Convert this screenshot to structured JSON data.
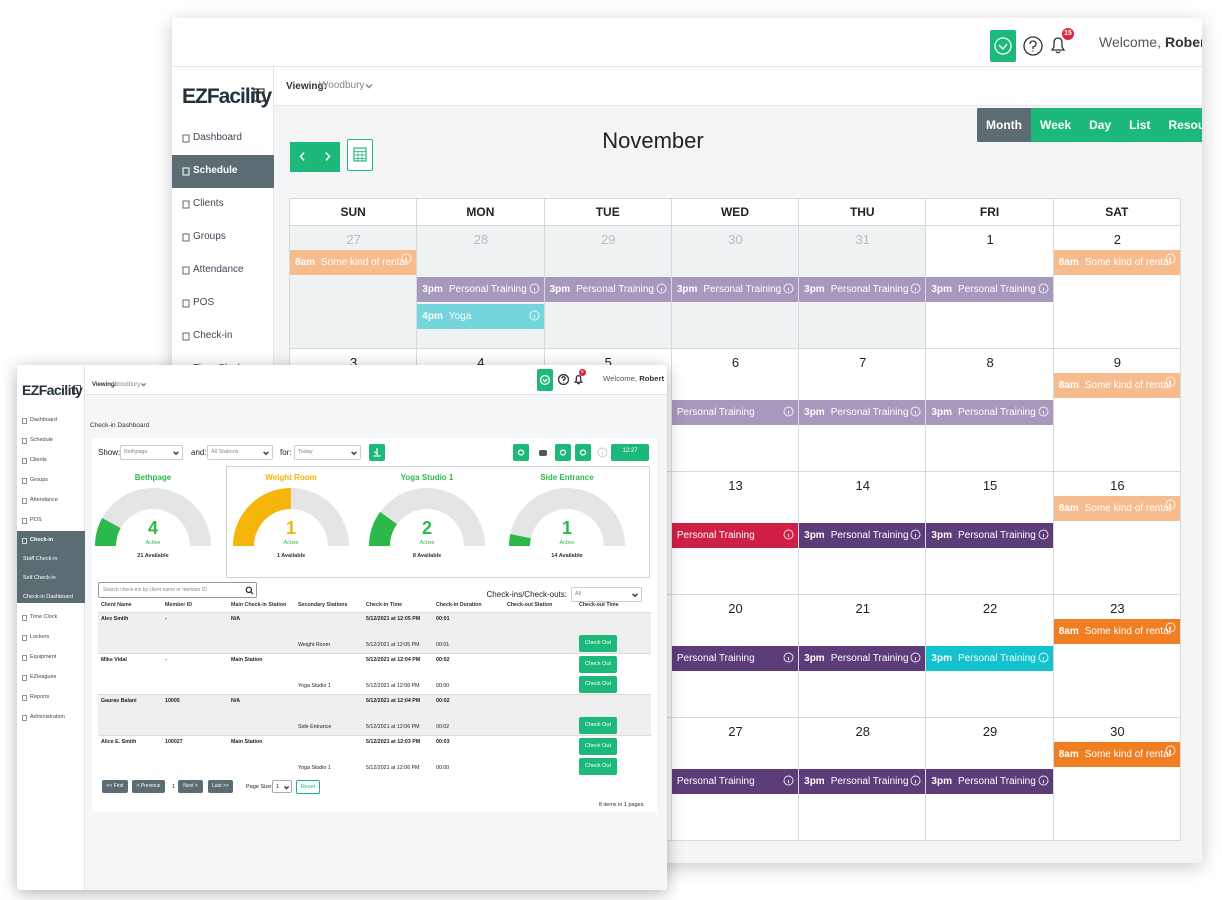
{
  "back": {
    "logo": "EZFacility",
    "viewing_label": "Viewing:",
    "viewing": "Woodbury",
    "welcome": "Welcome,",
    "user": "Robert",
    "notifications": "15",
    "nav": [
      {
        "label": "Dashboard"
      },
      {
        "label": "Schedule",
        "active": true
      },
      {
        "label": "Clients"
      },
      {
        "label": "Groups"
      },
      {
        "label": "Attendance"
      },
      {
        "label": "POS"
      },
      {
        "label": "Check-in"
      },
      {
        "label": "Time Clock"
      }
    ],
    "calendar": {
      "month": "November",
      "views": [
        {
          "label": "Month",
          "active": true
        },
        {
          "label": "Week"
        },
        {
          "label": "Day"
        },
        {
          "label": "List"
        },
        {
          "label": "Resources"
        }
      ],
      "weekdays": [
        "SUN",
        "MON",
        "TUE",
        "WED",
        "THU",
        "FRI",
        "SAT"
      ],
      "weeks": [
        [
          {
            "date": 27,
            "other_month": true,
            "events": [
              {
                "time": "8am",
                "label": "Some kind of rental",
                "color": "#f7bc8d"
              }
            ]
          },
          {
            "date": 28,
            "other_month": true,
            "events": [
              {
                "time": "3pm",
                "label": "Personal Training",
                "color": "#a898bd"
              },
              {
                "time": "4pm",
                "label": "Yoga",
                "color": "#74d6dc"
              }
            ]
          },
          {
            "date": 29,
            "other_month": true,
            "events": [
              {
                "time": "3pm",
                "label": "Personal Training",
                "color": "#a898bd"
              }
            ]
          },
          {
            "date": 30,
            "other_month": true,
            "events": [
              {
                "time": "3pm",
                "label": "Personal Training",
                "color": "#a898bd"
              }
            ]
          },
          {
            "date": 31,
            "other_month": true,
            "events": [
              {
                "time": "3pm",
                "label": "Personal Training",
                "color": "#a898bd"
              }
            ]
          },
          {
            "date": 1,
            "events": [
              {
                "time": "3pm",
                "label": "Personal Training",
                "color": "#a898bd"
              }
            ]
          },
          {
            "date": 2,
            "events": [
              {
                "time": "8am",
                "label": "Some kind of rental",
                "color": "#f7bc8d"
              }
            ]
          }
        ],
        [
          {
            "date": 3
          },
          {
            "date": 4
          },
          {
            "date": 5
          },
          {
            "date": 6,
            "events": [
              {
                "label": "Personal Training",
                "color": "#a898bd"
              }
            ]
          },
          {
            "date": 7,
            "events": [
              {
                "time": "3pm",
                "label": "Personal Training",
                "color": "#a898bd"
              }
            ]
          },
          {
            "date": 8,
            "events": [
              {
                "time": "3pm",
                "label": "Personal Training",
                "color": "#a898bd"
              }
            ]
          },
          {
            "date": 9,
            "events": [
              {
                "time": "8am",
                "label": "Some kind of rental",
                "color": "#f7bc8d"
              }
            ]
          }
        ],
        [
          null,
          null,
          null,
          {
            "date": 13,
            "events": [
              {
                "label": "Personal Training",
                "color": "#cf1f45"
              }
            ]
          },
          {
            "date": 14,
            "events": [
              {
                "time": "3pm",
                "label": "Personal Training",
                "color": "#5d3c7a"
              }
            ]
          },
          {
            "date": 15,
            "events": [
              {
                "time": "3pm",
                "label": "Personal Training",
                "color": "#5d3c7a"
              }
            ]
          },
          {
            "date": 16,
            "events": [
              {
                "time": "8am",
                "label": "Some kind of rental",
                "color": "#f7bc8d"
              }
            ]
          }
        ],
        [
          null,
          null,
          null,
          {
            "date": 20,
            "events": [
              {
                "label": "Personal Training",
                "color": "#5d3c7a"
              }
            ]
          },
          {
            "date": 21,
            "events": [
              {
                "time": "3pm",
                "label": "Personal Training",
                "color": "#5d3c7a"
              }
            ]
          },
          {
            "date": 22,
            "events": [
              {
                "time": "3pm",
                "label": "Personal Training",
                "color": "#12c2ce"
              }
            ]
          },
          {
            "date": 23,
            "events": [
              {
                "time": "8am",
                "label": "Some kind of rental",
                "color": "#f07e22"
              }
            ]
          }
        ],
        [
          null,
          null,
          null,
          {
            "date": 27,
            "events": [
              {
                "label": "Personal Training",
                "color": "#5d3c7a"
              }
            ]
          },
          {
            "date": 28,
            "events": [
              {
                "time": "3pm",
                "label": "Personal Training",
                "color": "#5d3c7a"
              }
            ]
          },
          {
            "date": 29,
            "events": [
              {
                "time": "3pm",
                "label": "Personal Training",
                "color": "#5d3c7a"
              }
            ]
          },
          {
            "date": 30,
            "events": [
              {
                "time": "8am",
                "label": "Some kind of rental",
                "color": "#f07e22"
              }
            ]
          }
        ]
      ]
    }
  },
  "front": {
    "logo": "EZFacility",
    "viewing_label": "Viewing:",
    "viewing": "Woodbury",
    "welcome": "Welcome,",
    "user": "Robert",
    "notifications": "5",
    "nav": [
      {
        "label": "Dashboard"
      },
      {
        "label": "Schedule"
      },
      {
        "label": "Clients"
      },
      {
        "label": "Groups"
      },
      {
        "label": "Attendance"
      },
      {
        "label": "POS"
      },
      {
        "label": "Check-in",
        "active": true
      },
      {
        "label": "Staff Check-in",
        "active": true
      },
      {
        "label": "Self Check-in",
        "active": true
      },
      {
        "label": "Check-in Dashboard",
        "active": true
      },
      {
        "label": "Time Clock"
      },
      {
        "label": "Lockers"
      },
      {
        "label": "Equipment"
      },
      {
        "label": "EZleagues"
      },
      {
        "label": "Reports"
      },
      {
        "label": "Administration"
      }
    ],
    "title": "Check-in Dashboard",
    "filters": {
      "show_label": "Show:",
      "show": "Bethpage",
      "and_label": "and:",
      "and": "All Stations",
      "for_label": "for:",
      "for": "Today",
      "time": "12:27"
    },
    "gauges": [
      {
        "name": "Bethpage",
        "active": 4,
        "active_label": "Active",
        "available": 21,
        "available_label": "21 Available",
        "color": "#2db84b"
      },
      {
        "name": "Weight Room",
        "active": 1,
        "active_label": "Active",
        "available": 1,
        "available_label": "1 Available",
        "color": "#f5b50a"
      },
      {
        "name": "Yoga Studio 1",
        "active": 2,
        "active_label": "Active",
        "available": 8,
        "available_label": "8 Available",
        "color": "#2db84b"
      },
      {
        "name": "Side Entrance",
        "active": 1,
        "active_label": "Active",
        "available": 14,
        "available_label": "14 Available",
        "color": "#2db84b"
      }
    ],
    "search_placeholder": "Search check-ins by client name or member ID",
    "type_label": "Check-ins/Check-outs:",
    "type": "All",
    "table": {
      "headers": [
        "Client Name",
        "Member ID",
        "Main Check-in Station",
        "Secondary Stations",
        "Check-in Time",
        "Check-in Duration",
        "Check-out Station",
        "Check-out Time"
      ],
      "rows": [
        {
          "client": "Alex Smith",
          "member_id": "-",
          "main_station": "N/A",
          "time": "5/12/2021 at 12:05 PM",
          "duration": "00:01"
        },
        {
          "secondary": "Weight Room",
          "time": "5/12/2021 at 12:05 PM",
          "duration": "00:01",
          "action": "Check Out"
        },
        {
          "client": "Mike Vidal",
          "member_id": "-",
          "main_station": "Main Station",
          "time": "5/12/2021 at 12:04 PM",
          "duration": "00:02",
          "action": "Check Out"
        },
        {
          "secondary": "Yoga Studio 1",
          "time": "5/12/2021 at 12:06 PM",
          "duration": "00:00",
          "action": "Check Out"
        },
        {
          "client": "Gaurav Balani",
          "member_id": "10005",
          "main_station": "N/A",
          "time": "5/12/2021 at 12:04 PM",
          "duration": "00:02"
        },
        {
          "secondary": "Side Entrance",
          "time": "5/12/2021 at 12:06 PM",
          "duration": "00:02",
          "action": "Check Out"
        },
        {
          "client": "Alice E. Smith",
          "member_id": "100027",
          "main_station": "Main Station",
          "time": "5/12/2021 at 12:03 PM",
          "duration": "00:03",
          "action": "Check Out"
        },
        {
          "secondary": "Yoga Studio 1",
          "time": "5/12/2021 at 12:06 PM",
          "duration": "00:00",
          "action": "Check Out"
        }
      ]
    },
    "pagination": {
      "first": "<< First",
      "previous": "< Previous",
      "page": "1",
      "next": "Next >",
      "last": "Last >>",
      "page_size_label": "Page Size:",
      "page_size": "1",
      "reset": "Reset",
      "summary": "8 items in 1 pages."
    }
  }
}
